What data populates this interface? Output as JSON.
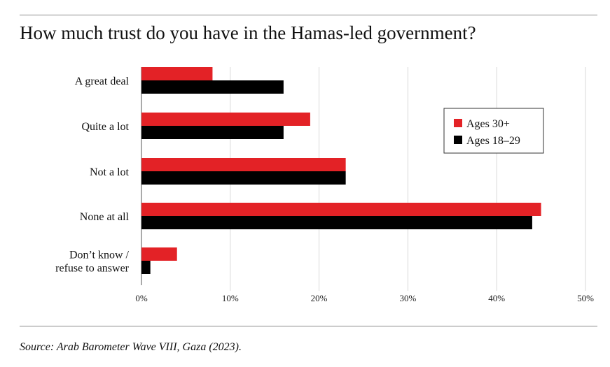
{
  "title": "How much trust do you have in the Hamas-led government?",
  "source": "Source: Arab Barometer Wave VIII, Gaza (2023).",
  "colors": {
    "series_0": "#e32226",
    "series_1": "#000000",
    "grid": "#d9d9d9"
  },
  "chart_data": {
    "type": "bar",
    "orientation": "horizontal",
    "title": "How much trust do you have in the Hamas-led government?",
    "categories": [
      [
        "A great deal"
      ],
      [
        "Quite a lot"
      ],
      [
        "Not a lot"
      ],
      [
        "None at all"
      ],
      [
        "Don’t know /",
        "refuse to answer"
      ]
    ],
    "series": [
      {
        "name": "Ages 30+",
        "values": [
          8,
          19,
          23,
          45,
          4
        ]
      },
      {
        "name": "Ages 18–29",
        "values": [
          16,
          16,
          23,
          44,
          1
        ]
      }
    ],
    "xlim": [
      0,
      50
    ],
    "xticks": [
      "0%",
      "10%",
      "20%",
      "30%",
      "40%",
      "50%"
    ],
    "xlabel": "",
    "ylabel": "",
    "grid": "vertical",
    "legend": "top-right"
  }
}
